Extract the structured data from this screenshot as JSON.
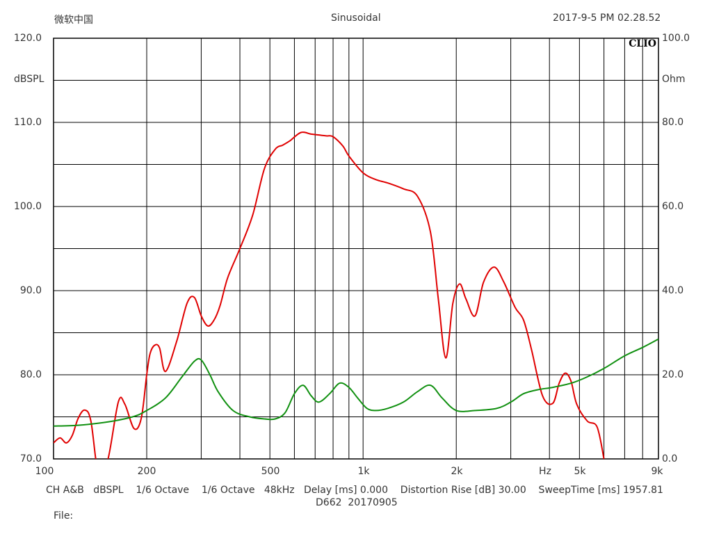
{
  "header": {
    "left": "微软中国",
    "center": "Sinusoidal",
    "right": "2017-9-5 PM 02.28.52"
  },
  "brand": "CLIO",
  "axes": {
    "y_left_label": "dBSPL",
    "y_right_label": "Ohm",
    "y_left_ticks": [
      "120.0",
      "110.0",
      "100.0",
      "90.0",
      "80.0",
      "70.0"
    ],
    "y_right_ticks": [
      "100.0",
      "80.0",
      "60.0",
      "40.0",
      "20.0",
      "0.0"
    ],
    "x_ticks": [
      "100",
      "200",
      "500",
      "1k",
      "2k",
      "Hz",
      "5k",
      "9k"
    ]
  },
  "footer": {
    "line1": "CH A&B   dBSPL    1/6 Octave    1/6 Octave   48kHz   Delay [ms] 0.000    Distortion Rise [dB] 30.00    SweepTime [ms] 1957.81",
    "line2": "D662  20170905",
    "line3": "File:"
  },
  "colors": {
    "spl": "#e00000",
    "impedance": "#109010",
    "grid": "#000000"
  },
  "chart_data": {
    "type": "line",
    "x_scale": "log",
    "xlim": [
      100,
      9000
    ],
    "ylim_left": [
      70,
      120
    ],
    "ylim_right": [
      0,
      100
    ],
    "grid": true,
    "series": [
      {
        "axis": "left",
        "x": [
          100,
          105,
          110,
          115,
          120,
          126,
          132,
          140,
          150,
          162,
          170,
          182,
          192,
          200,
          205,
          212,
          220,
          230,
          250,
          270,
          285,
          300,
          315,
          330,
          345,
          365,
          400,
          440,
          480,
          520,
          550,
          580,
          630,
          680,
          720,
          760,
          800,
          860,
          900,
          1000,
          1100,
          1200,
          1350,
          1500,
          1650,
          1750,
          1850,
          1950,
          2050,
          2150,
          2300,
          2450,
          2650,
          2850,
          3100,
          3300,
          3500,
          3800,
          4100,
          4300,
          4500,
          4700,
          4900,
          5300,
          5700,
          6000
        ],
        "y": [
          71.9,
          72.5,
          71.9,
          72.8,
          74.8,
          75.8,
          74.5,
          68,
          70,
          76.8,
          76.5,
          73.6,
          74.8,
          80,
          82.5,
          83.5,
          83.2,
          80.4,
          84,
          88.5,
          89.2,
          87,
          85.8,
          86.5,
          88.2,
          91.5,
          95,
          99,
          104.5,
          106.8,
          107.3,
          107.8,
          108.8,
          108.6,
          108.5,
          108.4,
          108.3,
          107.2,
          106,
          104,
          103.2,
          102.8,
          102.1,
          101.2,
          97,
          89,
          82,
          88.5,
          90.8,
          89,
          87,
          91,
          92.8,
          91,
          88,
          86.5,
          83,
          77.5,
          76.6,
          79,
          80.2,
          79.2,
          76.5,
          74.5,
          73.8,
          70
        ]
      },
      {
        "axis": "right",
        "x": [
          100,
          120,
          150,
          180,
          200,
          230,
          260,
          285,
          300,
          320,
          340,
          380,
          430,
          480,
          520,
          560,
          600,
          640,
          680,
          720,
          780,
          840,
          900,
          960,
          1030,
          1100,
          1200,
          1350,
          1500,
          1650,
          1800,
          2000,
          2300,
          2700,
          3000,
          3300,
          3700,
          4100,
          4700,
          5300,
          6000,
          7000,
          8000,
          9000
        ],
        "y": [
          7.8,
          8,
          8.8,
          10,
          11.5,
          14.5,
          19.5,
          23.2,
          23.5,
          20,
          16,
          11.5,
          10,
          9.5,
          9.5,
          11,
          15.5,
          17.5,
          15,
          13.5,
          15.5,
          18,
          17,
          14.5,
          12,
          11.5,
          12,
          13.5,
          16,
          17.5,
          14.5,
          11.5,
          11.5,
          12,
          13.5,
          15.5,
          16.5,
          17,
          18,
          19.5,
          21.5,
          24.5,
          26.5,
          28.5
        ]
      }
    ]
  }
}
